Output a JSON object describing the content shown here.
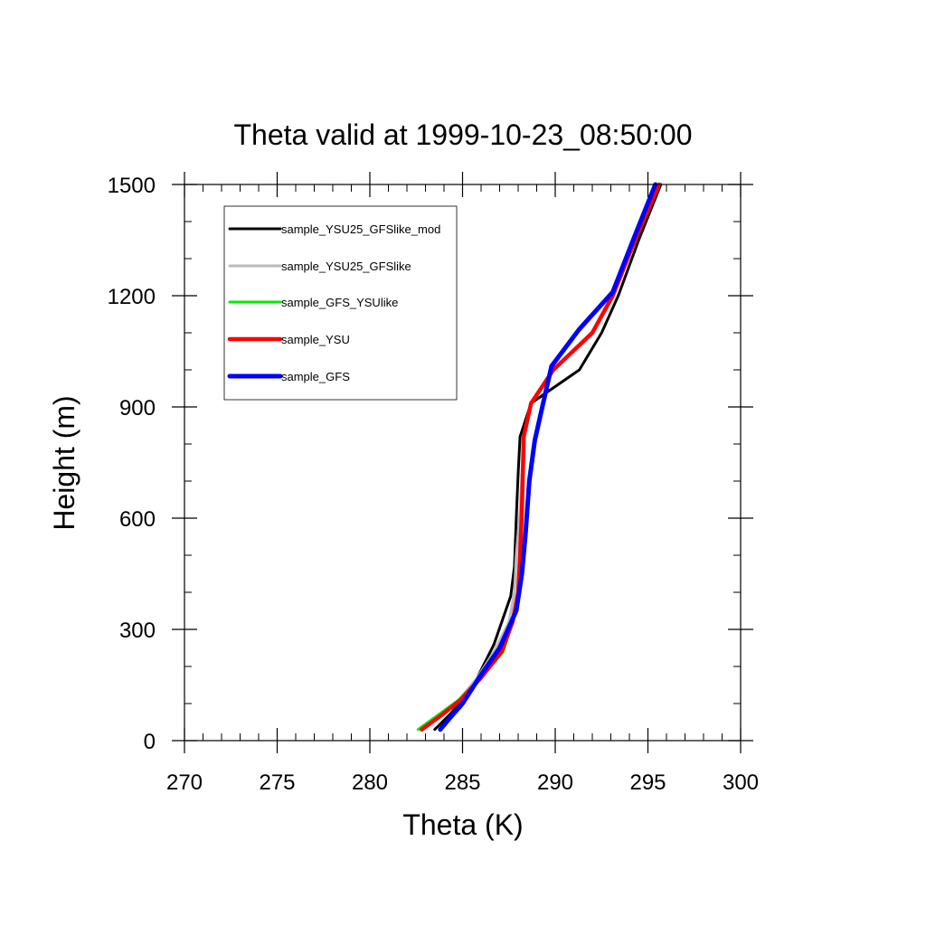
{
  "chart_data": {
    "type": "line",
    "title": "Theta valid at 1999-10-23_08:50:00",
    "xlabel": "Theta (K)",
    "ylabel": "Height (m)",
    "xlim": [
      270,
      300
    ],
    "ylim": [
      0,
      1500
    ],
    "xticks": [
      "270",
      "275",
      "280",
      "285",
      "290",
      "295",
      "300"
    ],
    "yticks": [
      "0",
      "300",
      "600",
      "900",
      "1200",
      "1500"
    ],
    "grid": false,
    "legend_position": "top-left",
    "series": [
      {
        "name": "sample_YSU25_GFSlike_mod",
        "color": "#000000",
        "x": [
          283.5,
          284.3,
          285.0,
          285.8,
          286.7,
          287.6,
          287.8,
          287.9,
          288.0,
          288.1,
          288.7,
          291.3,
          292.5,
          293.4,
          294.5,
          295.7
        ],
        "y": [
          30,
          70,
          110,
          170,
          260,
          390,
          470,
          600,
          720,
          820,
          910,
          1000,
          1100,
          1200,
          1350,
          1500
        ]
      },
      {
        "name": "sample_YSU25_GFSlike",
        "color": "#bbbbbb",
        "x": [
          282.7,
          283.8,
          284.8,
          285.8,
          286.7,
          287.5,
          287.8,
          287.9,
          288.1,
          288.3,
          288.7,
          289.9,
          292.0,
          293.1,
          294.3,
          295.6
        ],
        "y": [
          30,
          70,
          110,
          170,
          240,
          320,
          400,
          500,
          620,
          820,
          910,
          1000,
          1100,
          1200,
          1350,
          1500
        ]
      },
      {
        "name": "sample_GFS_YSUlike",
        "color": "#00ee00",
        "x": [
          282.6,
          283.7,
          284.8,
          286.0,
          287.2,
          287.7,
          288.0,
          288.1,
          288.2,
          288.3,
          288.7,
          289.9,
          292.0,
          293.1,
          294.3,
          295.6
        ],
        "y": [
          30,
          70,
          110,
          170,
          240,
          320,
          400,
          500,
          620,
          820,
          910,
          1000,
          1100,
          1200,
          1350,
          1500
        ]
      },
      {
        "name": "sample_YSU",
        "color": "#ff0000",
        "x": [
          282.8,
          283.9,
          284.9,
          286.0,
          287.1,
          287.7,
          288.0,
          288.1,
          288.2,
          288.3,
          288.7,
          289.9,
          292.0,
          293.1,
          294.3,
          295.6
        ],
        "y": [
          30,
          70,
          110,
          170,
          240,
          320,
          400,
          500,
          620,
          820,
          910,
          1000,
          1100,
          1200,
          1350,
          1500
        ]
      },
      {
        "name": "sample_GFS",
        "color": "#0000ff",
        "x": [
          283.8,
          284.3,
          285.0,
          285.9,
          287.0,
          287.9,
          288.2,
          288.4,
          288.6,
          288.9,
          289.3,
          289.8,
          291.3,
          293.1,
          294.2,
          295.4
        ],
        "y": [
          30,
          60,
          100,
          170,
          250,
          350,
          450,
          560,
          700,
          810,
          900,
          1010,
          1110,
          1210,
          1350,
          1500
        ]
      }
    ]
  }
}
